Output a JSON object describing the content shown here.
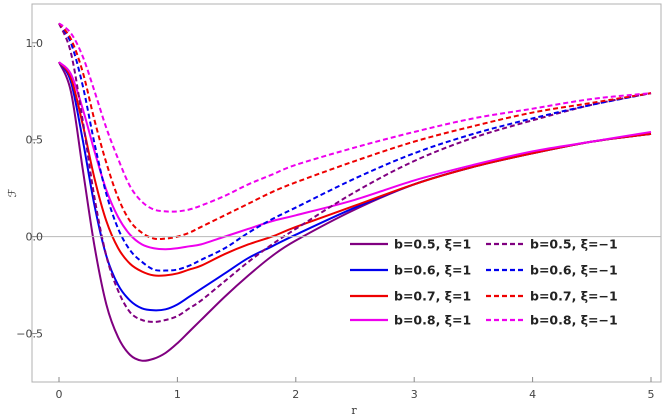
{
  "chart_data": {
    "type": "line",
    "title": "",
    "xlabel": "r",
    "ylabel": "ℱ",
    "xlim": [
      0,
      5
    ],
    "ylim": [
      -0.75,
      1.2
    ],
    "grid": false,
    "legend_position": "lower-right",
    "xticks": [
      0,
      1,
      2,
      3,
      4,
      5
    ],
    "xtick_labels": [
      "0",
      "1",
      "2",
      "3",
      "4",
      "5"
    ],
    "yticks": [
      -0.5,
      0.0,
      0.5,
      1.0
    ],
    "ytick_labels": [
      "-0.5",
      "0.0",
      "0.5",
      "1.0"
    ],
    "x": [
      0.0,
      0.1,
      0.2,
      0.3,
      0.4,
      0.5,
      0.6,
      0.7,
      0.8,
      0.9,
      1.0,
      1.1,
      1.2,
      1.4,
      1.6,
      1.8,
      2.0,
      2.5,
      3.0,
      3.5,
      4.0,
      4.5,
      5.0
    ],
    "series": [
      {
        "name": "b=0.5, ξ=1",
        "color": "#800080",
        "dash": "solid",
        "values": [
          0.9,
          0.75,
          0.35,
          -0.05,
          -0.35,
          -0.52,
          -0.61,
          -0.64,
          -0.63,
          -0.6,
          -0.55,
          -0.49,
          -0.43,
          -0.31,
          -0.2,
          -0.1,
          -0.02,
          0.14,
          0.27,
          0.36,
          0.43,
          0.49,
          0.53
        ]
      },
      {
        "name": "b=0.6, ξ=1",
        "color": "#0000ee",
        "dash": "solid",
        "values": [
          0.9,
          0.8,
          0.5,
          0.16,
          -0.1,
          -0.25,
          -0.33,
          -0.37,
          -0.38,
          -0.375,
          -0.35,
          -0.31,
          -0.27,
          -0.19,
          -0.11,
          -0.05,
          0.01,
          0.15,
          0.27,
          0.36,
          0.43,
          0.49,
          0.53
        ]
      },
      {
        "name": "b=0.7, ξ=1",
        "color": "#ee0000",
        "dash": "solid",
        "values": [
          0.9,
          0.82,
          0.58,
          0.3,
          0.08,
          -0.06,
          -0.14,
          -0.18,
          -0.2,
          -0.2,
          -0.19,
          -0.17,
          -0.15,
          -0.09,
          -0.04,
          0.0,
          0.05,
          0.16,
          0.27,
          0.36,
          0.43,
          0.49,
          0.53
        ]
      },
      {
        "name": "b=0.8, ξ=1",
        "color": "#ee00ee",
        "dash": "solid",
        "values": [
          0.9,
          0.84,
          0.66,
          0.44,
          0.24,
          0.1,
          0.01,
          -0.04,
          -0.06,
          -0.065,
          -0.06,
          -0.05,
          -0.04,
          0.0,
          0.04,
          0.08,
          0.11,
          0.19,
          0.29,
          0.37,
          0.44,
          0.49,
          0.54
        ]
      },
      {
        "name": "b=0.5, ξ=−1",
        "color": "#800080",
        "dash": "dashed",
        "values": [
          1.1,
          0.95,
          0.6,
          0.2,
          -0.1,
          -0.28,
          -0.39,
          -0.43,
          -0.44,
          -0.43,
          -0.41,
          -0.37,
          -0.33,
          -0.23,
          -0.13,
          -0.04,
          0.04,
          0.23,
          0.39,
          0.51,
          0.6,
          0.68,
          0.74
        ]
      },
      {
        "name": "b=0.6, ξ=−1",
        "color": "#0000ee",
        "dash": "dashed",
        "values": [
          1.1,
          1.0,
          0.78,
          0.48,
          0.22,
          0.04,
          -0.07,
          -0.13,
          -0.17,
          -0.175,
          -0.17,
          -0.15,
          -0.12,
          -0.06,
          0.02,
          0.09,
          0.15,
          0.3,
          0.43,
          0.53,
          0.61,
          0.68,
          0.74
        ]
      },
      {
        "name": "b=0.7, ξ=−1",
        "color": "#ee0000",
        "dash": "dashed",
        "values": [
          1.1,
          1.02,
          0.85,
          0.6,
          0.38,
          0.2,
          0.08,
          0.02,
          -0.01,
          -0.01,
          0.0,
          0.02,
          0.05,
          0.11,
          0.17,
          0.23,
          0.28,
          0.39,
          0.49,
          0.57,
          0.64,
          0.69,
          0.74
        ]
      },
      {
        "name": "b=0.8, ξ=−1",
        "color": "#ee00ee",
        "dash": "dashed",
        "values": [
          1.1,
          1.05,
          0.93,
          0.75,
          0.56,
          0.4,
          0.26,
          0.18,
          0.14,
          0.13,
          0.13,
          0.14,
          0.16,
          0.21,
          0.27,
          0.32,
          0.37,
          0.46,
          0.54,
          0.61,
          0.66,
          0.71,
          0.74
        ]
      }
    ]
  }
}
